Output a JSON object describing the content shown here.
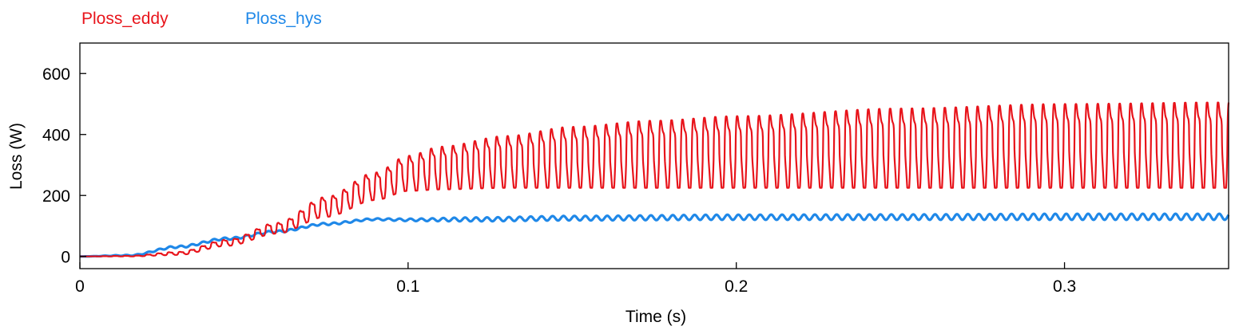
{
  "chart_data": {
    "type": "line",
    "xlabel": "Time (s)",
    "ylabel": "Loss (W)",
    "xlim": [
      0,
      0.35
    ],
    "ylim": [
      -40,
      700
    ],
    "x_ticks": [
      0,
      0.1,
      0.2,
      0.3
    ],
    "x_tick_labels": [
      "0",
      "0.1",
      "0.2",
      "0.3"
    ],
    "y_ticks": [
      0,
      200,
      400,
      600
    ],
    "y_tick_labels": [
      "0",
      "200",
      "400",
      "600"
    ],
    "grid": false,
    "legend_position": "top-left",
    "series": [
      {
        "name": "Ploss_eddy",
        "color": "#e8141b",
        "oscillation_period_s": 0.00333,
        "envelope": {
          "t": [
            0,
            0.015,
            0.03,
            0.045,
            0.06,
            0.075,
            0.09,
            0.1,
            0.11,
            0.13,
            0.15,
            0.175,
            0.2,
            0.25,
            0.3,
            0.35
          ],
          "max": [
            0,
            2,
            15,
            55,
            110,
            195,
            275,
            330,
            360,
            395,
            425,
            445,
            460,
            485,
            500,
            505
          ],
          "min": [
            0,
            0,
            5,
            35,
            75,
            130,
            185,
            215,
            220,
            225,
            225,
            225,
            225,
            225,
            225,
            225
          ]
        }
      },
      {
        "name": "Ploss_hys",
        "color": "#1f88e8",
        "oscillation_period_s": 0.00333,
        "envelope": {
          "t": [
            0,
            0.015,
            0.03,
            0.045,
            0.06,
            0.075,
            0.09,
            0.1,
            0.12,
            0.15,
            0.2,
            0.25,
            0.3,
            0.35
          ],
          "max": [
            0,
            5,
            35,
            62,
            85,
            110,
            125,
            124,
            128,
            133,
            137,
            138,
            140,
            140
          ],
          "min": [
            0,
            2,
            28,
            55,
            78,
            103,
            119,
            116,
            115,
            118,
            120,
            120,
            120,
            120
          ]
        }
      }
    ]
  }
}
